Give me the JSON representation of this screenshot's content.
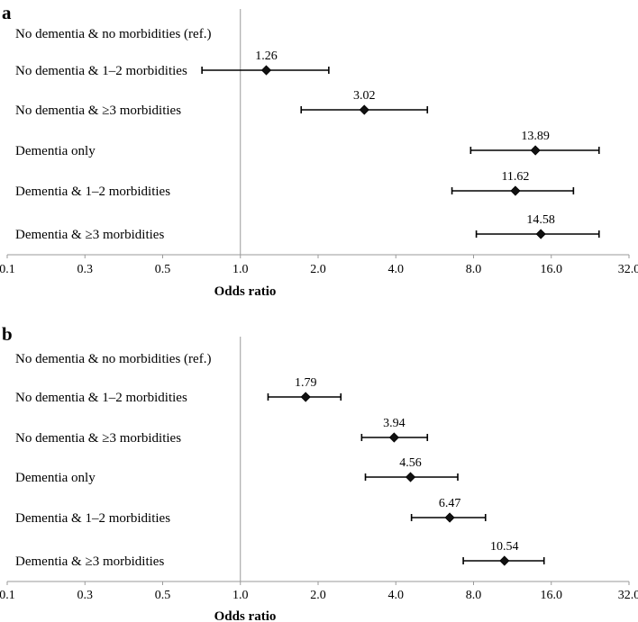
{
  "chart_data": [
    {
      "type": "forest",
      "panel": "a",
      "xlabel": "Odds ratio",
      "xscale": "log2",
      "xlim": [
        0.1,
        32.0
      ],
      "reference_line": 1.0,
      "ticks": [
        "0.1",
        "0.3",
        "0.5",
        "1.0",
        "2.0",
        "4.0",
        "8.0",
        "16.0",
        "32.0"
      ],
      "tick_values": [
        0.125,
        0.25,
        0.5,
        1,
        2,
        4,
        8,
        16,
        32
      ],
      "categories": [
        "No dementia & no morbidities (ref.)",
        "No dementia & 1–2 morbidities",
        "No dementia & ≥3 morbidities",
        "Dementia only",
        "Dementia & 1–2 morbidities",
        "Dementia & ≥3 morbidities"
      ],
      "or": [
        null,
        1.26,
        3.02,
        13.89,
        11.62,
        14.58
      ],
      "labels": [
        "",
        "1.26",
        "3.02",
        "13.89",
        "11.62",
        "14.58"
      ],
      "ci_low": [
        null,
        0.71,
        1.72,
        7.8,
        6.6,
        8.2
      ],
      "ci_high": [
        null,
        2.2,
        5.3,
        24.5,
        19.5,
        24.5
      ]
    },
    {
      "type": "forest",
      "panel": "b",
      "xlabel": "Odds ratio",
      "xscale": "log2",
      "xlim": [
        0.1,
        32.0
      ],
      "reference_line": 1.0,
      "ticks": [
        "0.1",
        "0.3",
        "0.5",
        "1.0",
        "2.0",
        "4.0",
        "8.0",
        "16.0",
        "32.0"
      ],
      "tick_values": [
        0.125,
        0.25,
        0.5,
        1,
        2,
        4,
        8,
        16,
        32
      ],
      "categories": [
        "No dementia & no morbidities (ref.)",
        "No dementia & 1–2 morbidities",
        "No dementia & ≥3 morbidities",
        "Dementia only",
        "Dementia & 1–2 morbidities",
        "Dementia & ≥3 morbidities"
      ],
      "or": [
        null,
        1.79,
        3.94,
        4.56,
        6.47,
        10.54
      ],
      "labels": [
        "",
        "1.79",
        "3.94",
        "4.56",
        "6.47",
        "10.54"
      ],
      "ci_low": [
        null,
        1.28,
        2.95,
        3.05,
        4.6,
        7.3
      ],
      "ci_high": [
        null,
        2.45,
        5.3,
        6.95,
        8.9,
        15.0
      ]
    }
  ]
}
